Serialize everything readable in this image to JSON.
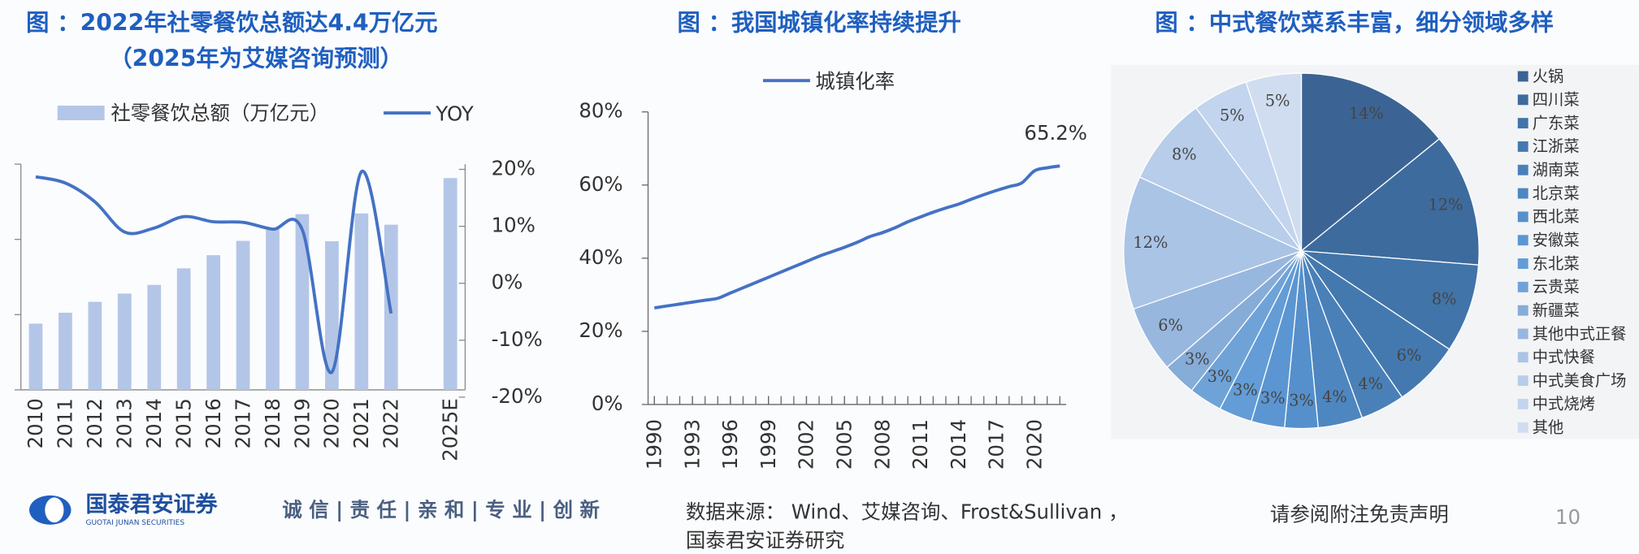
{
  "chart_data": [
    {
      "type": "bar",
      "title": "图 ：2022年社零餐饮总额达4.4万亿元",
      "subtitle": "（2025年为艾媒咨询预测）",
      "categories": [
        "2010",
        "2011",
        "2012",
        "2013",
        "2014",
        "2015",
        "2016",
        "2017",
        "2018",
        "2019",
        "2020",
        "2021",
        "2022",
        null,
        "2025E"
      ],
      "series": [
        {
          "name": "社零餐饮总额（万亿元）",
          "type": "bar",
          "color": "#b4c6e7",
          "values": [
            1.76,
            2.05,
            2.34,
            2.56,
            2.79,
            3.23,
            3.58,
            3.96,
            4.27,
            4.67,
            3.95,
            4.69,
            4.39,
            null,
            5.63
          ]
        },
        {
          "name": "YOY",
          "type": "line",
          "axis": "y2",
          "color": "#4472c4",
          "values": [
            18.7,
            17.6,
            14.3,
            9.0,
            9.7,
            11.7,
            10.8,
            10.7,
            9.5,
            9.4,
            -15.6,
            19.6,
            -5.3,
            null,
            null
          ]
        }
      ],
      "ylim": [
        0,
        6
      ],
      "yticks": [
        0,
        2,
        4,
        6
      ],
      "y2lim": [
        -20,
        20
      ],
      "y2ticks": [
        {
          "value": -20,
          "label": "-20%"
        },
        {
          "value": -10,
          "label": "-10%"
        },
        {
          "value": 0,
          "label": "0%"
        },
        {
          "value": 10,
          "label": "10%"
        },
        {
          "value": 20,
          "label": "20%"
        }
      ]
    },
    {
      "type": "line",
      "title": "图 ：我国城镇化率持续提升",
      "x": [
        1990,
        1991,
        1992,
        1993,
        1994,
        1995,
        1996,
        1997,
        1998,
        1999,
        2000,
        2001,
        2002,
        2003,
        2004,
        2005,
        2006,
        2007,
        2008,
        2009,
        2010,
        2011,
        2012,
        2013,
        2014,
        2015,
        2016,
        2017,
        2018,
        2019,
        2020,
        2021,
        2022
      ],
      "series": [
        {
          "name": "城镇化率",
          "color": "#4472c4",
          "values": [
            26.41,
            26.94,
            27.46,
            27.99,
            28.51,
            29.04,
            30.48,
            31.91,
            33.35,
            34.78,
            36.22,
            37.66,
            39.09,
            40.53,
            41.76,
            42.99,
            44.34,
            45.89,
            46.99,
            48.34,
            49.95,
            51.27,
            52.57,
            53.73,
            54.77,
            56.1,
            57.35,
            58.52,
            59.58,
            60.6,
            63.89,
            64.72,
            65.22
          ]
        }
      ],
      "xlim": [
        1989.5,
        2022.5
      ],
      "xticks": [
        1990,
        1993,
        1996,
        1999,
        2002,
        2005,
        2008,
        2011,
        2014,
        2017,
        2020
      ],
      "ylim": [
        0,
        80
      ],
      "yticks": [
        {
          "value": 0,
          "label": "0%"
        },
        {
          "value": 20,
          "label": "20%"
        },
        {
          "value": 40,
          "label": "40%"
        },
        {
          "value": 60,
          "label": "60%"
        },
        {
          "value": 80,
          "label": "80%"
        }
      ],
      "annotation": "65.2%"
    },
    {
      "type": "pie",
      "title": "图 ：中式餐饮菜系丰富，细分领域多样",
      "categories": [
        "火锅",
        "四川菜",
        "广东菜",
        "江浙菜",
        "湖南菜",
        "北京菜",
        "西北菜",
        "安徽菜",
        "东北菜",
        "云贵菜",
        "新疆菜",
        "其他中式正餐",
        "中式快餐",
        "中式美食广场",
        "中式烧烤",
        "其他"
      ],
      "values": [
        14,
        12,
        8,
        6,
        4,
        4,
        3,
        3,
        3,
        3,
        3,
        6,
        12,
        8,
        5,
        5
      ],
      "value_labels": [
        "14%",
        "12%",
        "8%",
        "6%",
        "4%",
        "4%",
        "3%",
        "3%",
        "3%",
        "3%",
        "3%",
        "6%",
        "12%",
        "8%",
        "5%",
        "5%"
      ],
      "colors": [
        "#3b6494",
        "#3d6b9e",
        "#4174a8",
        "#4479b0",
        "#4a80b8",
        "#4e86c0",
        "#5590cc",
        "#5b96d2",
        "#639cd6",
        "#6fa3d8",
        "#86acd8",
        "#98b7de",
        "#aac4e6",
        "#b7cdea",
        "#c3d4ee",
        "#d0ddf0"
      ]
    }
  ],
  "footer": {
    "company": "国泰君安证券",
    "company_en": "GUOTAI JUNAN SECURITIES",
    "slogan": "诚 信 | 责 任 | 亲 和 | 专 业 | 创 新",
    "source": "数据来源： Wind、艾媒咨询、Frost&Sullivan ，",
    "source2": "国泰君安证券研究",
    "disclaimer": "请参阅附注免责声明",
    "page": "10"
  }
}
